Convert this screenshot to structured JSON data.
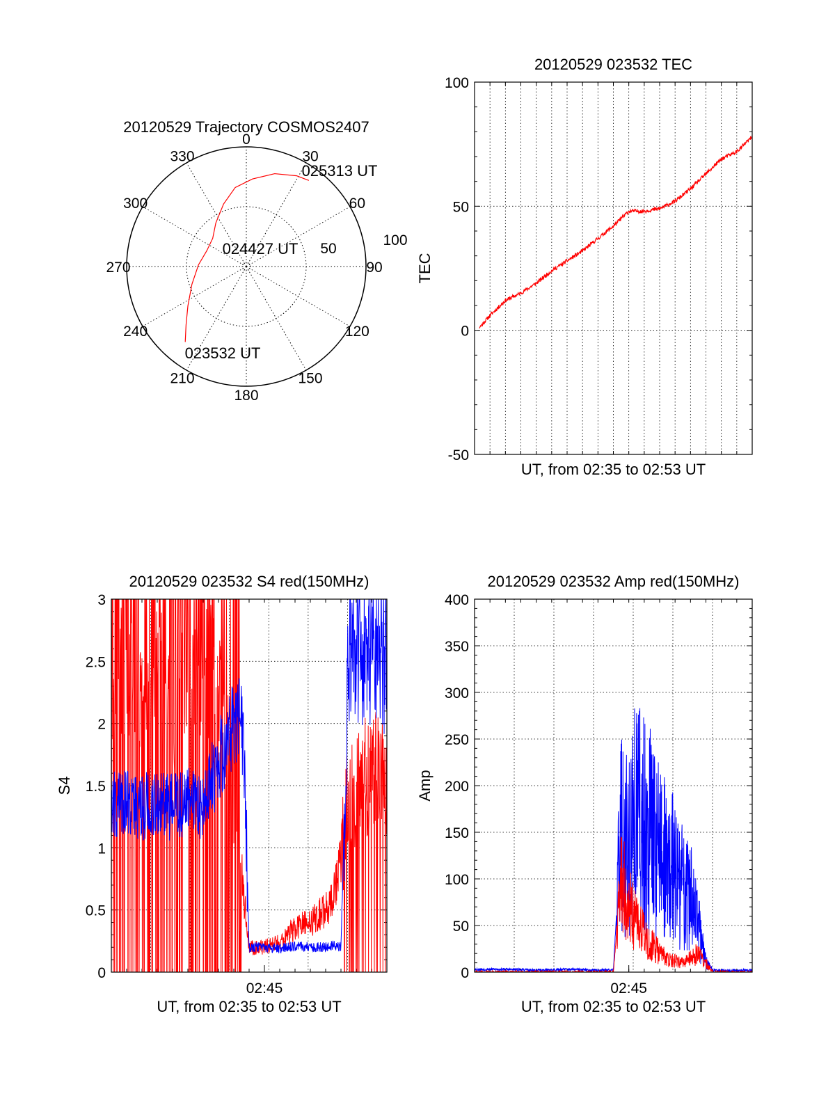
{
  "colors": {
    "red": "#ff0000",
    "blue": "#0000ff",
    "axis": "#000000",
    "grid": "#000000"
  },
  "chart_data": [
    {
      "id": "trajectory",
      "type": "polar",
      "title": "20120529 Trajectory COSMOS2407",
      "angle_labels": [
        "0",
        "30",
        "60",
        "90",
        "120",
        "150",
        "180",
        "210",
        "240",
        "270",
        "300",
        "330"
      ],
      "radial_labels": [
        "50",
        "100"
      ],
      "rmax": 100,
      "track": {
        "color": "red",
        "points": [
          {
            "az": 219,
            "el": 17
          },
          {
            "az": 226,
            "el": 27
          },
          {
            "az": 236,
            "el": 37
          },
          {
            "az": 252,
            "el": 47
          },
          {
            "az": 272,
            "el": 54
          },
          {
            "az": 292,
            "el": 58
          },
          {
            "az": 310,
            "el": 57
          },
          {
            "az": 325,
            "el": 50
          },
          {
            "az": 340,
            "el": 40
          },
          {
            "az": 352,
            "el": 30
          },
          {
            "az": 4,
            "el": 24
          },
          {
            "az": 17,
            "el": 17
          },
          {
            "az": 29,
            "el": 12
          },
          {
            "az": 36,
            "el": 10
          }
        ]
      },
      "annotations": [
        {
          "text": "025313 UT",
          "az": 36,
          "el": 10
        },
        {
          "text": "024427 UT",
          "az": 296,
          "el": 59
        },
        {
          "text": "023532 UT",
          "az": 219,
          "el": 17
        }
      ]
    },
    {
      "id": "tec",
      "type": "line",
      "title": "20120529 023532 TEC",
      "ylabel": "TEC",
      "xlabel": "UT, from 02:35 to 02:53 UT",
      "ylim": [
        -50,
        100
      ],
      "yticks": [
        -50,
        0,
        50,
        100
      ],
      "xlim": [
        0,
        18
      ],
      "xticks": [],
      "grid": true,
      "series": [
        {
          "color": "red",
          "x": [
            0.3,
            1.0,
            2.0,
            3.0,
            4.0,
            5.0,
            6.0,
            7.0,
            8.0,
            9.0,
            10.0,
            11.0,
            12.0,
            13.0,
            14.0,
            15.0,
            16.0,
            17.0,
            18.0
          ],
          "y": [
            1,
            6,
            12,
            15,
            19,
            24,
            28,
            32,
            37,
            42,
            48,
            48,
            49,
            52,
            57,
            63,
            69,
            72,
            78
          ]
        }
      ]
    },
    {
      "id": "s4",
      "type": "line",
      "title": "20120529 023532 S4 red(150MHz)",
      "ylabel": "S4",
      "xlabel": "UT, from 02:35 to 02:53 UT",
      "ylim": [
        0,
        3
      ],
      "yticks": [
        0,
        0.5,
        1,
        1.5,
        2,
        2.5,
        3
      ],
      "ytick_labels": [
        "0",
        "0.5",
        "1",
        "1.5",
        "2",
        "2.5",
        "3"
      ],
      "xlim": [
        0,
        18
      ],
      "xticks": [
        {
          "value": 10,
          "label": "02:45"
        }
      ],
      "grid": true,
      "series": [
        {
          "color": "red",
          "x": [
            0,
            1,
            2,
            3,
            4,
            5,
            6,
            6.5,
            7,
            7.5,
            8,
            8.3,
            8.5,
            8.7,
            9,
            10,
            11,
            12,
            13,
            13.5,
            14,
            14.5,
            15,
            15.3,
            16,
            17,
            18
          ],
          "y": [
            2.2,
            2.5,
            2.0,
            2.4,
            2.1,
            2.6,
            2.3,
            2.5,
            2.2,
            2.0,
            1.4,
            1.0,
            0.8,
            0.55,
            0.2,
            0.2,
            0.25,
            0.35,
            0.4,
            0.45,
            0.5,
            0.6,
            0.9,
            1.3,
            1.5,
            1.6,
            1.6
          ]
        },
        {
          "color": "blue",
          "x": [
            0,
            1,
            2,
            3,
            4,
            5,
            6,
            6.5,
            7,
            7.5,
            8,
            8.5,
            8.8,
            9,
            10,
            11,
            12,
            13,
            14,
            14.5,
            15,
            15.3,
            15.5,
            16,
            17,
            18
          ],
          "y": [
            1.35,
            1.38,
            1.33,
            1.36,
            1.32,
            1.37,
            1.34,
            1.55,
            1.7,
            1.85,
            2.0,
            2.1,
            1.2,
            0.2,
            0.2,
            0.19,
            0.21,
            0.2,
            0.2,
            0.22,
            0.2,
            1.6,
            2.5,
            2.6,
            2.55,
            2.5
          ]
        }
      ]
    },
    {
      "id": "amp",
      "type": "line",
      "title": "20120529 023532 Amp red(150MHz)",
      "ylabel": "Amp",
      "xlabel": "UT, from 02:35 to 02:53 UT",
      "ylim": [
        0,
        400
      ],
      "yticks": [
        0,
        50,
        100,
        150,
        200,
        250,
        300,
        350,
        400
      ],
      "xlim": [
        0,
        18
      ],
      "xticks": [
        {
          "value": 10,
          "label": "02:45"
        }
      ],
      "grid": true,
      "series": [
        {
          "color": "blue",
          "x": [
            0,
            2,
            4,
            6,
            8,
            9,
            9.5,
            10,
            10.5,
            11,
            11.5,
            12,
            12.5,
            13,
            13.5,
            14,
            14.5,
            15,
            15.5,
            16,
            18
          ],
          "y": [
            3,
            3,
            2,
            3,
            2,
            3,
            150,
            140,
            170,
            155,
            150,
            135,
            110,
            110,
            90,
            80,
            50,
            10,
            2,
            2,
            2
          ]
        },
        {
          "color": "red",
          "x": [
            0,
            2,
            4,
            6,
            8,
            9,
            9.5,
            10,
            10.5,
            11,
            11.5,
            12,
            12.5,
            13,
            13.5,
            14,
            14.5,
            15,
            15.5,
            18
          ],
          "y": [
            0,
            0,
            0,
            0,
            0,
            0,
            100,
            70,
            55,
            40,
            30,
            20,
            15,
            12,
            10,
            15,
            20,
            10,
            0,
            0
          ]
        }
      ]
    }
  ]
}
